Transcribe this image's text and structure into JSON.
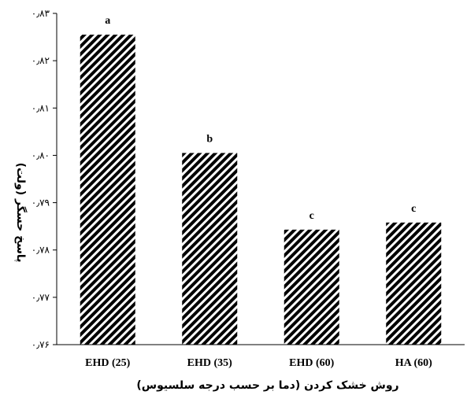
{
  "chart_data": {
    "type": "bar",
    "categories": [
      "EHD (25)",
      "EHD (35)",
      "EHD (60)",
      "HA (60)"
    ],
    "values": [
      0.8255,
      0.8005,
      0.7843,
      0.7858
    ],
    "significance_labels": [
      "a",
      "b",
      "c",
      "c"
    ],
    "xlabel": "روش خشک کردن (دما بر حسب درجه سلسیوس)",
    "ylabel": "پاسخ حسگر (ولت)",
    "ylim": [
      0.76,
      0.83
    ],
    "yticks": [
      0.76,
      0.77,
      0.78,
      0.79,
      0.8,
      0.81,
      0.82,
      0.83
    ],
    "ytick_labels": [
      "۰٫۷۶",
      "۰٫۷۷",
      "۰٫۷۸",
      "۰٫۷۹",
      "۰٫۸۰",
      "۰٫۸۱",
      "۰٫۸۲",
      "۰٫۸۳"
    ],
    "grid": false,
    "bar_fill": "diagonal-hatch",
    "colors": {
      "hatch": "#000000",
      "background": "#ffffff",
      "axis": "#000000"
    }
  }
}
